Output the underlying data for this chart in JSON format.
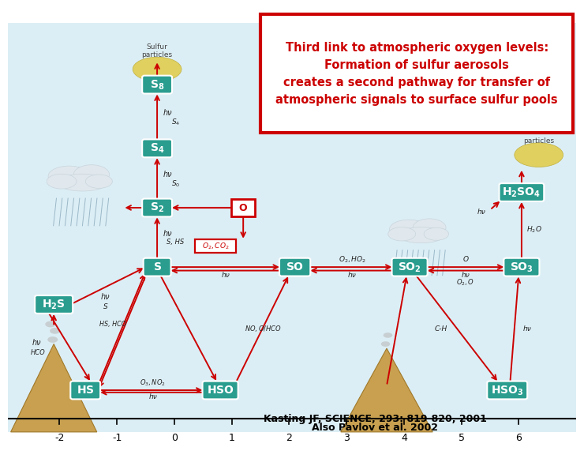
{
  "title_text": "Third link to atmospheric oxygen levels:\nFormation of sulfur aerosols\ncreates a second pathway for transfer of\natmospheric signals to surface sulfur pools",
  "title_box_color": "#cc0000",
  "title_text_color": "#cc0000",
  "title_bg_color": "#ffffff",
  "background_color": "#dceef5",
  "citation_line1": "Kasting JF, SCIENCE, 293: 819-820, 2001",
  "citation_line2": "Also Pavlov et al. 2002",
  "citation_color": "#000000",
  "node_bg": "#2a9d8f",
  "node_text_color": "#ffffff",
  "xlim": [
    -2.9,
    7.0
  ],
  "ylim": [
    -1.2,
    8.5
  ],
  "xticks": [
    -2,
    -1,
    0,
    1,
    2,
    3,
    4,
    5,
    6
  ],
  "tick_y": -0.85
}
